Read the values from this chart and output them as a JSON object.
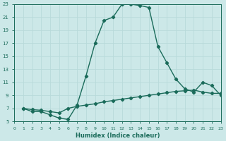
{
  "xlabel": "Humidex (Indice chaleur)",
  "bg_color": "#cce8e8",
  "grid_color": "#aad4d4",
  "line_color": "#1a6b5a",
  "curve1_x": [
    1,
    2,
    3,
    4,
    5,
    6,
    7,
    8,
    9,
    10,
    11,
    12,
    13,
    14,
    15,
    16,
    17,
    18,
    19,
    20,
    21,
    22,
    23
  ],
  "curve1_y": [
    7.0,
    6.5,
    6.5,
    6.0,
    5.5,
    5.3,
    7.5,
    12.0,
    17.0,
    20.5,
    21.0,
    23.0,
    23.0,
    22.8,
    22.5,
    16.5,
    14.0,
    11.5,
    10.0,
    9.5,
    11.0,
    10.5,
    9.0
  ],
  "curve2_x": [
    1,
    2,
    3,
    4,
    5,
    6,
    7,
    8,
    9,
    10,
    11,
    12,
    13,
    14,
    15,
    16,
    17,
    18,
    19,
    20,
    21,
    22,
    23
  ],
  "curve2_y": [
    7.0,
    6.8,
    6.7,
    6.5,
    6.3,
    7.0,
    7.3,
    7.5,
    7.7,
    8.0,
    8.2,
    8.4,
    8.6,
    8.8,
    9.0,
    9.2,
    9.4,
    9.6,
    9.7,
    9.8,
    9.5,
    9.3,
    9.3
  ],
  "xlim": [
    0,
    23
  ],
  "ylim": [
    5,
    23
  ],
  "yticks": [
    5,
    7,
    9,
    11,
    13,
    15,
    17,
    19,
    21,
    23
  ],
  "xticks": [
    0,
    1,
    2,
    3,
    4,
    5,
    6,
    7,
    8,
    9,
    10,
    11,
    12,
    13,
    14,
    15,
    16,
    17,
    18,
    19,
    20,
    21,
    22,
    23
  ],
  "xlabel_fontsize": 6,
  "tick_fontsize_x": 4.5,
  "tick_fontsize_y": 5.0,
  "linewidth": 1.0,
  "markersize": 2.2
}
